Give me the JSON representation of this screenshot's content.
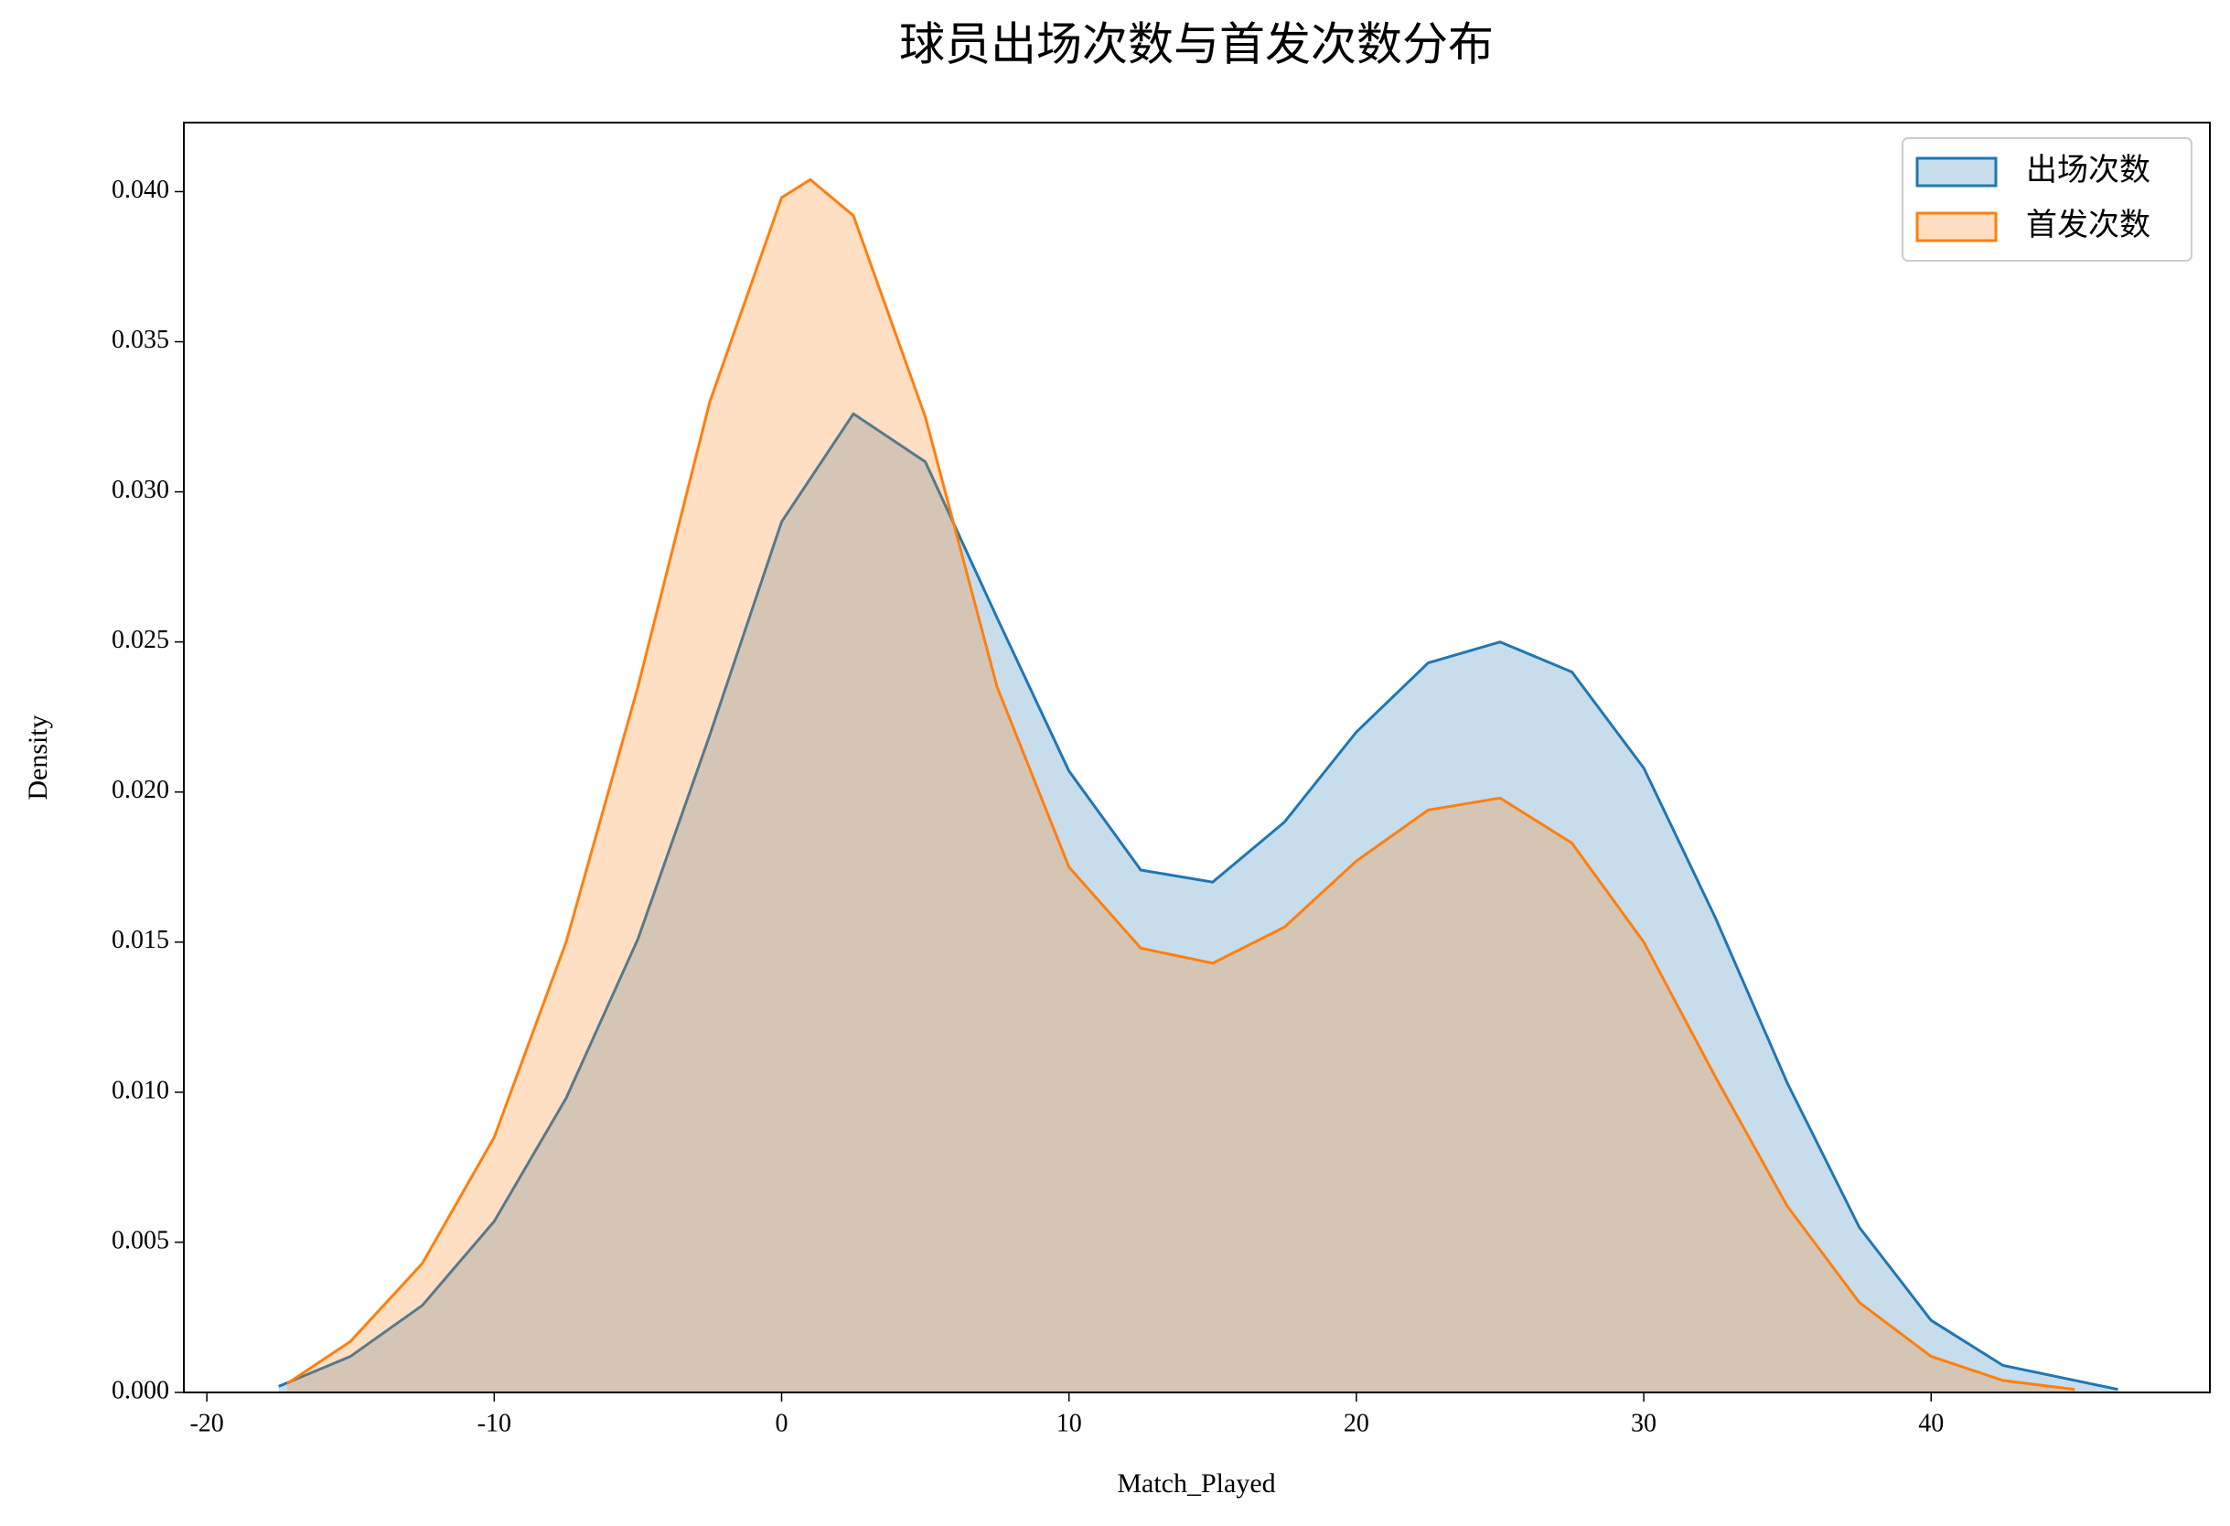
{
  "chart_data": {
    "type": "kde",
    "title": "球员出场次数与首发次数分布",
    "xlabel": "Match_Played",
    "ylabel": "Density",
    "xlim": [
      -20.8,
      49.7
    ],
    "ylim": [
      0,
      0.0423
    ],
    "xticks": [
      -20,
      -10,
      0,
      10,
      20,
      30,
      40
    ],
    "yticks": [
      {
        "value": 0,
        "label": "0.000"
      },
      {
        "value": 0.005,
        "label": "0.005"
      },
      {
        "value": 0.01,
        "label": "0.010"
      },
      {
        "value": 0.015,
        "label": "0.015"
      },
      {
        "value": 0.02,
        "label": "0.020"
      },
      {
        "value": 0.025,
        "label": "0.025"
      },
      {
        "value": 0.03,
        "label": "0.030"
      },
      {
        "value": 0.035,
        "label": "0.035"
      },
      {
        "value": 0.04,
        "label": "0.040"
      }
    ],
    "legend": "upper right",
    "series": [
      {
        "name": "出场次数",
        "color": "#1f77b4",
        "x": [
          -17.5,
          -15,
          -12.5,
          -10,
          -7.5,
          -5,
          -2.5,
          0,
          2.5,
          5,
          7.5,
          10,
          12.5,
          15,
          17.5,
          20,
          22.5,
          25,
          27.5,
          30,
          32.5,
          35,
          37.5,
          40,
          42.5,
          46.5
        ],
        "values": [
          0.0002,
          0.0012,
          0.0029,
          0.0057,
          0.0098,
          0.0151,
          0.0219,
          0.029,
          0.0326,
          0.031,
          0.0258,
          0.0207,
          0.0174,
          0.017,
          0.019,
          0.022,
          0.0243,
          0.025,
          0.024,
          0.0208,
          0.0158,
          0.0103,
          0.0055,
          0.0024,
          0.0009,
          0.0001
        ]
      },
      {
        "name": "首发次数",
        "color": "#ff7f0e",
        "x": [
          -17.2,
          -15,
          -12.5,
          -10,
          -7.5,
          -5,
          -2.5,
          0,
          1,
          2.5,
          5,
          7.5,
          10,
          12.5,
          15,
          17.5,
          20,
          22.5,
          25,
          27.5,
          30,
          32.5,
          35,
          37.5,
          40,
          42.5,
          45
        ],
        "values": [
          0.0003,
          0.0017,
          0.0043,
          0.0085,
          0.015,
          0.0235,
          0.033,
          0.0398,
          0.0404,
          0.0392,
          0.0325,
          0.0235,
          0.0175,
          0.0148,
          0.0143,
          0.0155,
          0.0177,
          0.0194,
          0.0198,
          0.0183,
          0.015,
          0.0105,
          0.0062,
          0.003,
          0.0012,
          0.0004,
          0.0001
        ]
      }
    ]
  }
}
